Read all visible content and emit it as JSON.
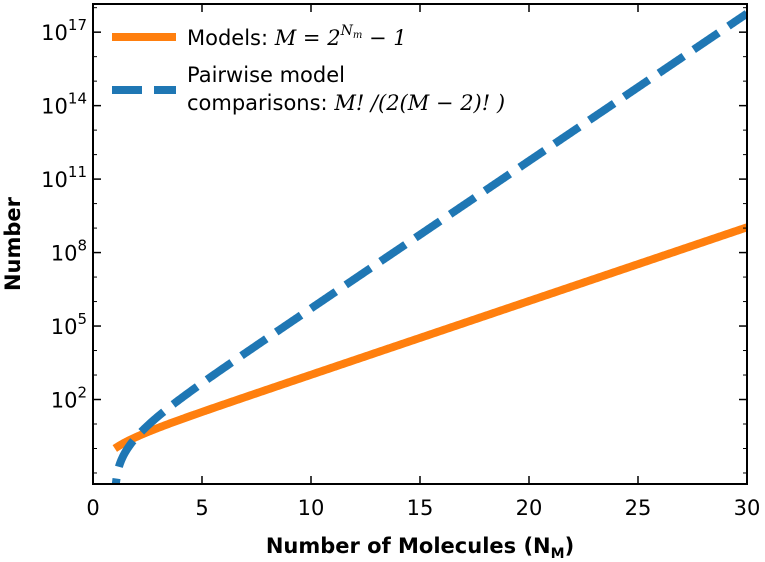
{
  "chart_data": {
    "type": "line",
    "xlabel": "Number of Molecules (N",
    "xlabel_sub": "M",
    "xlabel_tail": ")",
    "ylabel": "Number",
    "xlim": [
      0,
      30
    ],
    "ylim_log10": [
      -1.45,
      18.15
    ],
    "yscale": "log",
    "xticks": [
      0,
      5,
      10,
      15,
      20,
      25,
      30
    ],
    "xtick_labels": [
      "0",
      "5",
      "10",
      "15",
      "20",
      "25",
      "30"
    ],
    "yticks_log10": [
      2,
      5,
      8,
      11,
      14,
      17
    ],
    "ytick_base": "10",
    "ytick_exponents": [
      "2",
      "5",
      "8",
      "11",
      "14",
      "17"
    ],
    "grid": false,
    "legend_position": "upper-left",
    "series": [
      {
        "name": "Models: M = 2^{N_m} − 1",
        "legend_prefix": "Models: ",
        "legend_math": "M = 2",
        "legend_sup": "N",
        "legend_sup_sub": "m",
        "legend_math_tail": " − 1",
        "color": "#ff7f0e",
        "style": "solid",
        "formula": "2^N - 1"
      },
      {
        "name": "Pairwise model comparisons: M! /(2(M − 2)! )",
        "legend_line1": "Pairwise model",
        "legend_line2_prefix": "comparisons: ",
        "legend_line2_math": "M! /(2(M − 2)! )",
        "color": "#1f77b4",
        "style": "dashed",
        "formula": "M(M-1)/2 with M = 2^N - 1"
      }
    ]
  }
}
